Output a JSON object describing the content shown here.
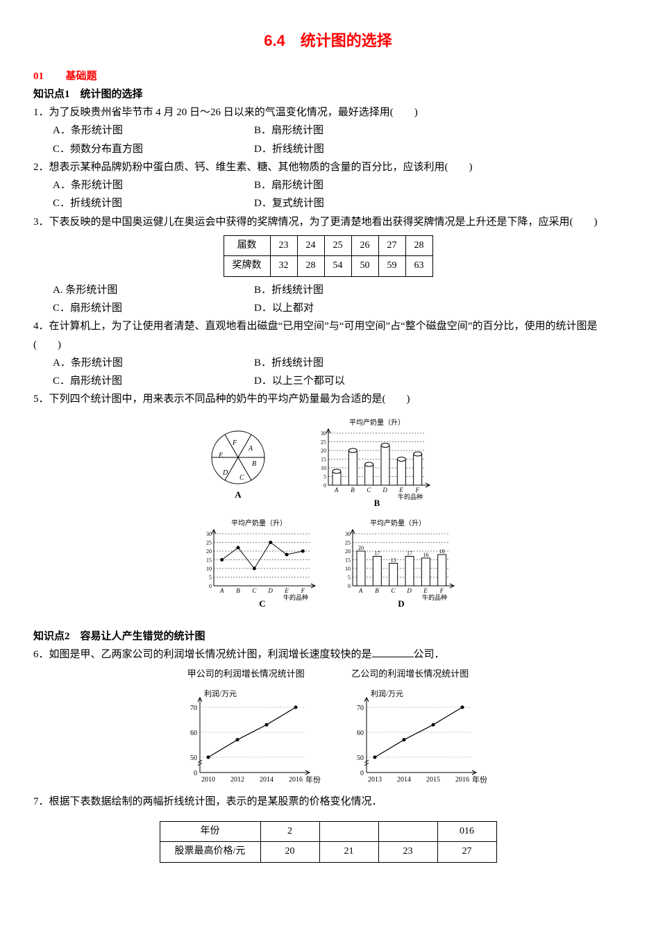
{
  "title": "6.4　统计图的选择",
  "section1": {
    "num": "01",
    "label": "基础题"
  },
  "kp1": "知识点1　统计图的选择",
  "q1": {
    "num": "1．",
    "text": "为了反映贵州省毕节市 4 月 20 日～26 日以来的气温变化情况，最好选择用(　　)",
    "A": "A．条形统计图",
    "B": "B．扇形统计图",
    "C": "C．频数分布直方图",
    "D": "D．折线统计图"
  },
  "q2": {
    "num": "2．",
    "text": "想表示某种品牌奶粉中蛋白质、钙、维生素、糖、其他物质的含量的百分比，应该利用(　　)",
    "A": "A．条形统计图",
    "B": "B．扇形统计图",
    "C": "C．折线统计图",
    "D": "D．复式统计图"
  },
  "q3": {
    "num": "3．",
    "text": "下表反映的是中国奥运健儿在奥运会中获得的奖牌情况，为了更清楚地看出获得奖牌情况是上升还是下降，应采用(　　)",
    "table": {
      "row1_label": "届数",
      "row1": [
        "23",
        "24",
        "25",
        "26",
        "27",
        "28"
      ],
      "row2_label": "奖牌数",
      "row2": [
        "32",
        "28",
        "54",
        "50",
        "59",
        "63"
      ]
    },
    "A": "A. 条形统计图",
    "B": "B．折线统计图",
    "C": "C．扇形统计图",
    "D": "D．以上都对"
  },
  "q4": {
    "num": "4．",
    "text": "在计算机上，为了让使用者清楚、直观地看出磁盘“已用空间”与“可用空间”占“整个磁盘空间”的百分比，使用的统计图是(　　)",
    "A": "A．条形统计图",
    "B": "B．折线统计图",
    "C": "C．扇形统计图",
    "D": "D．以上三个都可以"
  },
  "q5": {
    "num": "5．",
    "text": "下列四个统计图中，用来表示不同品种的奶牛的平均产奶量最为合适的是(　　)",
    "chart_title": "平均产奶量（升）",
    "x_label": "牛的品种",
    "cats": [
      "A",
      "B",
      "C",
      "D",
      "E",
      "F"
    ],
    "yticks": [
      "0",
      "5",
      "10",
      "15",
      "20",
      "25",
      "30"
    ],
    "valsB": [
      8,
      20,
      12,
      23,
      15,
      18
    ],
    "valsC": [
      15,
      22,
      10,
      25,
      18,
      20
    ],
    "valsD": [
      20,
      17,
      13,
      17,
      16,
      18
    ],
    "valsD_label": [
      "20",
      "17",
      "13",
      "17",
      "16",
      "18"
    ],
    "sub_labels": {
      "A": "A",
      "B": "B",
      "C": "C",
      "D": "D"
    }
  },
  "kp2": "知识点2　容易让人产生错觉的统计图",
  "q6": {
    "num": "6．",
    "text_a": "如图是甲、乙两家公司的利润增长情况统计图，利润增长速度较快的是",
    "text_b": "公司．",
    "cap_a": "甲公司的利润增长情况统计图",
    "cap_b": "乙公司的利润增长情况统计图",
    "ylab": "利润/万元",
    "xlab": "年份",
    "yticks": [
      "0",
      "50",
      "60",
      "70"
    ],
    "xa": [
      "2010",
      "2012",
      "2014",
      "2016"
    ],
    "xb": [
      "2013",
      "2014",
      "2015",
      "2016"
    ],
    "ya": [
      50,
      57,
      63,
      70
    ],
    "yb": [
      50,
      57,
      63,
      70
    ]
  },
  "q7": {
    "num": "7．",
    "text": "根据下表数据绘制的两幅折线统计图，表示的是某股票的价格变化情况．",
    "table": {
      "r1_label": "年份",
      "r1": [
        "2",
        "",
        "",
        "016"
      ],
      "r2_label": "股票最高价格/元",
      "r2": [
        "20",
        "21",
        "23",
        "27"
      ]
    }
  },
  "colors": {
    "accent": "#ff0000",
    "text": "#000000",
    "grid": "#888888"
  }
}
